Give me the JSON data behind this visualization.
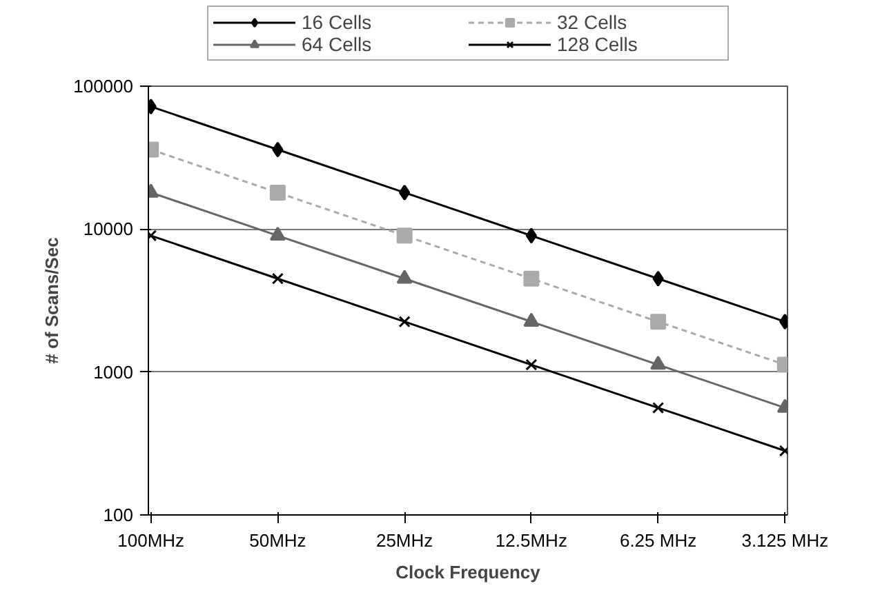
{
  "chart_data": {
    "type": "line",
    "xlabel": "Clock Frequency",
    "ylabel": "# of Scans/Sec",
    "categories": [
      "100MHz",
      "50MHz",
      "25MHz",
      "12.5MHz",
      "6.25 MHz",
      "3.125 MHz"
    ],
    "series": [
      {
        "name": "16 Cells",
        "color": "#000000",
        "marker": "diamond",
        "line_style": "solid",
        "values": [
          72000,
          36000,
          18000,
          9000,
          4500,
          2250
        ]
      },
      {
        "name": "32 Cells",
        "color": "#aaaaaa",
        "marker": "square",
        "line_style": "dashed",
        "values": [
          36000,
          18000,
          9000,
          4500,
          2250,
          1125
        ]
      },
      {
        "name": "64 Cells",
        "color": "#666666",
        "marker": "triangle",
        "line_style": "solid",
        "values": [
          18000,
          9000,
          4500,
          2250,
          1125,
          562
        ]
      },
      {
        "name": "128 Cells",
        "color": "#000000",
        "marker": "cross",
        "line_style": "solid",
        "values": [
          9000,
          4500,
          2250,
          1125,
          562,
          281
        ]
      }
    ],
    "log": "y",
    "ylim": [
      100,
      100000
    ],
    "yticks": [
      100,
      1000,
      10000,
      100000
    ],
    "grid": "y",
    "legend": "top"
  }
}
